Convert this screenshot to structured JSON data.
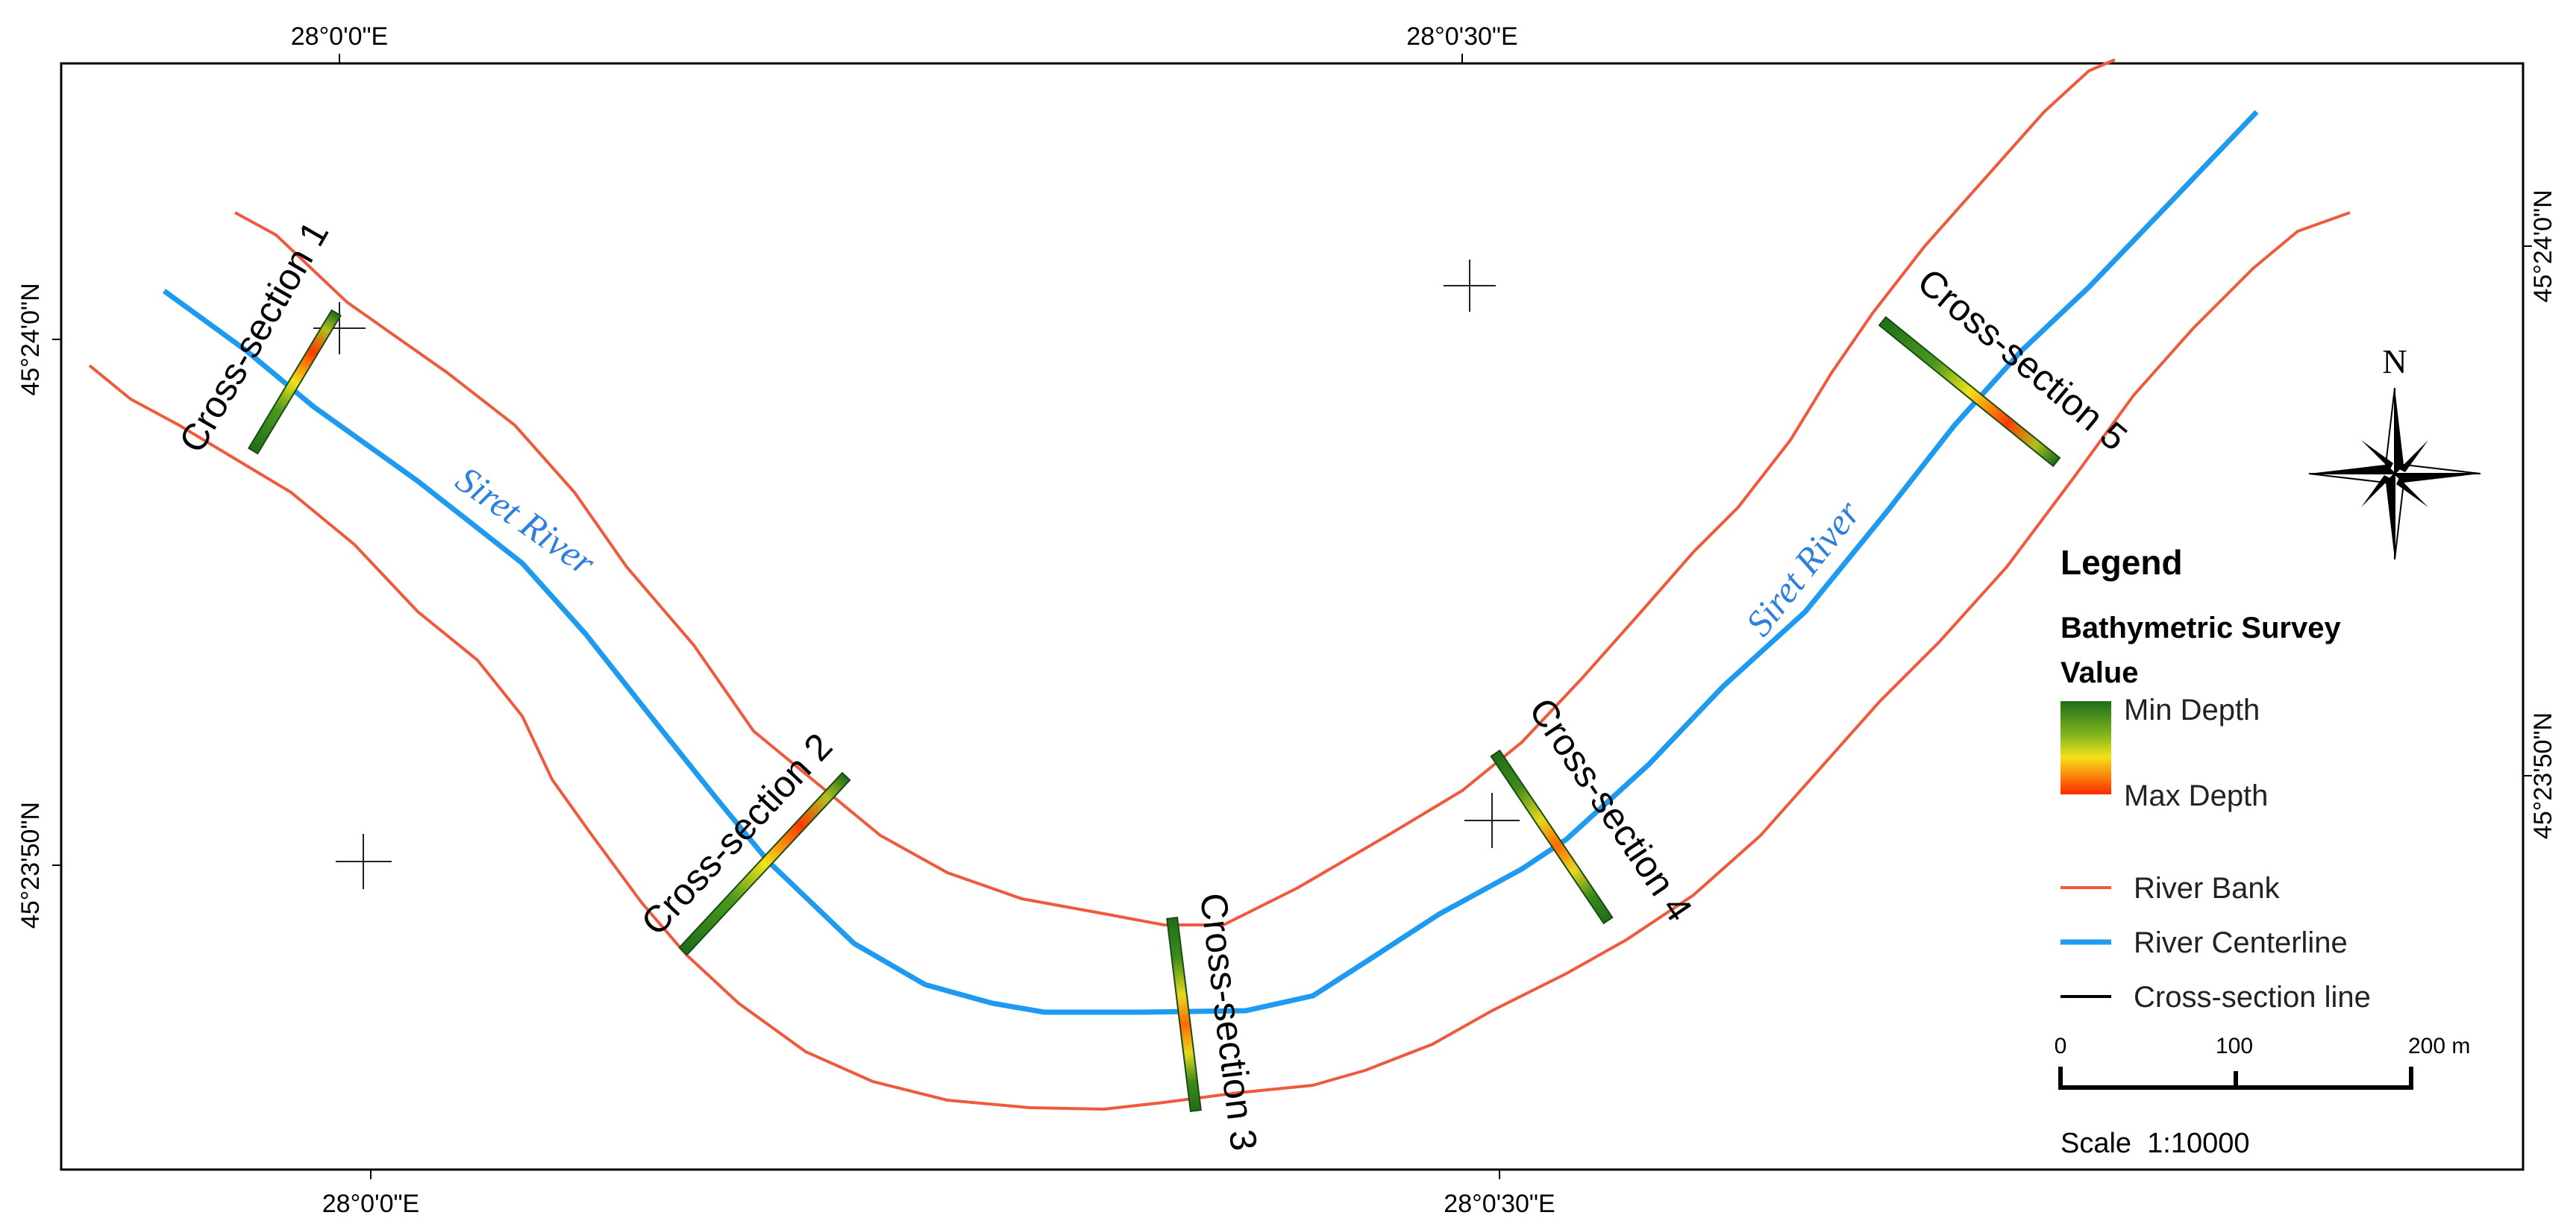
{
  "coords": {
    "top_left": "28°0'0\"E",
    "top_right": "28°0'30\"E",
    "bottom_left": "28°0'0\"E",
    "bottom_right": "28°0'30\"E",
    "left_top": "45°24'0\"N",
    "left_bottom": "45°23'50\"N",
    "right_top": "45°24'0\"N",
    "right_bottom": "45°23'50\"N"
  },
  "cross_sections": [
    "Cross-section 1",
    "Cross-section 2",
    "Cross-section 3",
    "Cross-section 4",
    "Cross-section 5"
  ],
  "river_labels": [
    "Siret River",
    "Siret River"
  ],
  "north_label": "N",
  "legend": {
    "title": "Legend",
    "subtitle": "Bathymetric Survey",
    "value_label": "Value",
    "min_label": "Min Depth",
    "max_label": "Max Depth",
    "items": [
      "River Bank",
      "River Centerline",
      "Cross-section line"
    ]
  },
  "scale_bar": {
    "ticks": [
      "0",
      "100",
      "200 m"
    ],
    "ratio": "Scale  1:10000"
  },
  "colors": {
    "river_bank": "#f05a3c",
    "centerline": "#1e9bf0",
    "river_label": "#2f7fdc",
    "depth_min": "#1f6e1a",
    "depth_mid": "#f3e21a",
    "depth_max": "#ff2a00"
  }
}
